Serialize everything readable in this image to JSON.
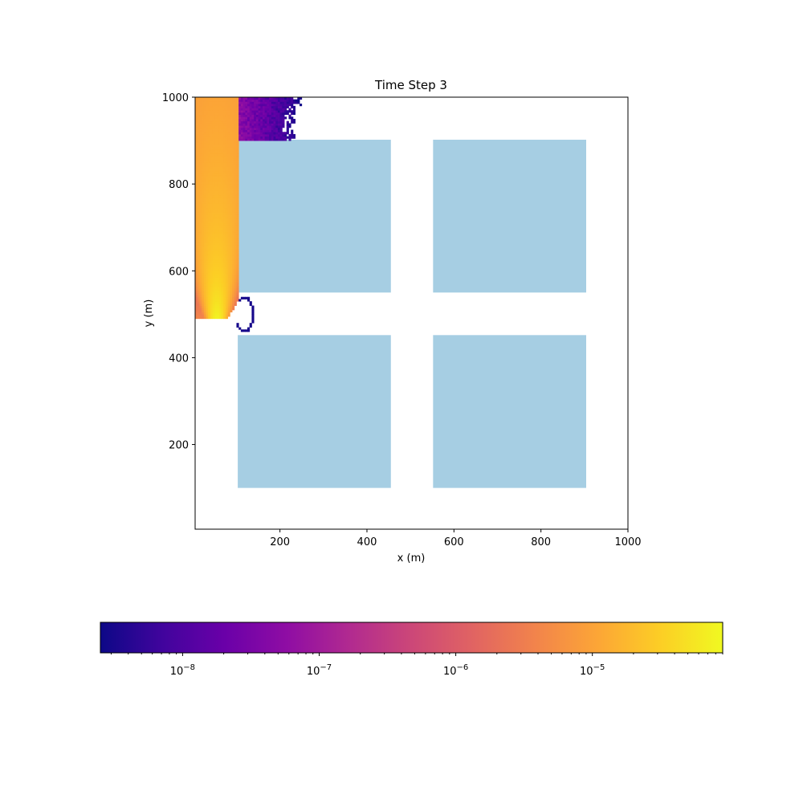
{
  "chart_data": {
    "type": "heatmap",
    "title": "Time Step 3",
    "xlabel": "x (m)",
    "ylabel": "y (m)",
    "xlim": [
      5,
      1000
    ],
    "ylim": [
      5,
      1000
    ],
    "xticks": [
      200,
      400,
      600,
      800,
      1000
    ],
    "yticks": [
      200,
      400,
      600,
      800,
      1000
    ],
    "colormap": "plasma",
    "color_scale": "log",
    "colorbar": {
      "orientation": "horizontal",
      "range": [
        2.5e-09,
        9e-05
      ],
      "ticks": [
        {
          "value": 1e-08,
          "label_base": "10",
          "label_exp": "−8"
        },
        {
          "value": 1e-07,
          "label_base": "10",
          "label_exp": "−7"
        },
        {
          "value": 1e-06,
          "label_base": "10",
          "label_exp": "−6"
        },
        {
          "value": 1e-05,
          "label_base": "10",
          "label_exp": "−5"
        }
      ]
    },
    "buildings": [
      {
        "x": [
          103,
          455
        ],
        "y": [
          550,
          902
        ]
      },
      {
        "x": [
          552,
          904
        ],
        "y": [
          550,
          902
        ]
      },
      {
        "x": [
          103,
          455
        ],
        "y": [
          100,
          452
        ]
      },
      {
        "x": [
          552,
          904
        ],
        "y": [
          100,
          452
        ]
      }
    ],
    "building_color": "#a6cee3",
    "plume": {
      "source": [
        55,
        490
      ],
      "peak_concentration": 8e-05,
      "main_region": {
        "x": [
          5,
          103
        ],
        "y": [
          478,
          1000
        ]
      },
      "upper_region": {
        "x": [
          103,
          290
        ],
        "y": [
          902,
          1000
        ]
      },
      "low_region": {
        "x": [
          90,
          140
        ],
        "y": [
          455,
          552
        ]
      }
    }
  }
}
